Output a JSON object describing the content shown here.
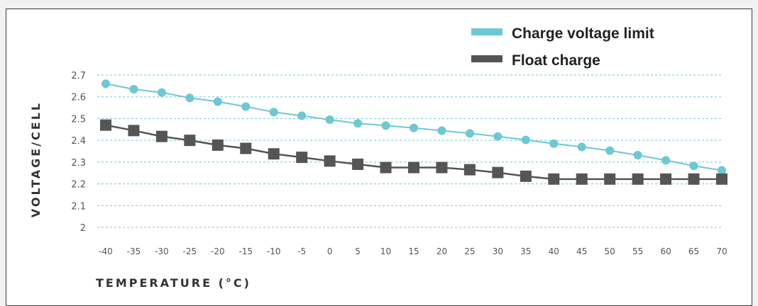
{
  "chart_data": {
    "type": "line",
    "x": [
      -40,
      -35,
      -30,
      -25,
      -20,
      -15,
      -10,
      -5,
      0,
      5,
      10,
      15,
      20,
      25,
      30,
      35,
      40,
      45,
      50,
      55,
      60,
      65,
      70
    ],
    "series": [
      {
        "name": "Charge voltage limit",
        "color": "#6cc8d4",
        "marker": "circle",
        "values": [
          2.66,
          2.635,
          2.62,
          2.595,
          2.578,
          2.555,
          2.53,
          2.513,
          2.495,
          2.478,
          2.468,
          2.457,
          2.445,
          2.432,
          2.418,
          2.402,
          2.385,
          2.37,
          2.353,
          2.332,
          2.308,
          2.283,
          2.262
        ]
      },
      {
        "name": "Float charge",
        "color": "#555555",
        "marker": "square",
        "values": [
          2.47,
          2.445,
          2.418,
          2.4,
          2.378,
          2.363,
          2.338,
          2.322,
          2.305,
          2.29,
          2.275,
          2.275,
          2.275,
          2.265,
          2.252,
          2.235,
          2.222,
          2.222,
          2.222,
          2.222,
          2.222,
          2.222,
          2.222
        ]
      }
    ],
    "xticks": [
      "-40",
      "-35",
      "-30",
      "-25",
      "-20",
      "-15",
      "-10",
      "-5",
      "0",
      "5",
      "10",
      "15",
      "20",
      "25",
      "30",
      "35",
      "40",
      "45",
      "50",
      "55",
      "60",
      "65",
      "70"
    ],
    "yticks": [
      "2",
      "2.1",
      "2.2",
      "2.3",
      "2.4",
      "2.5",
      "2.6",
      "2.7"
    ],
    "xlabel": "TEMPERATURE (°C)",
    "ylabel": "VOLTAGE/CELL",
    "ylim": [
      2,
      2.7
    ],
    "grid": "horizontal dashed",
    "grid_color": "#6cc8d4",
    "legend_position": "top-right"
  }
}
